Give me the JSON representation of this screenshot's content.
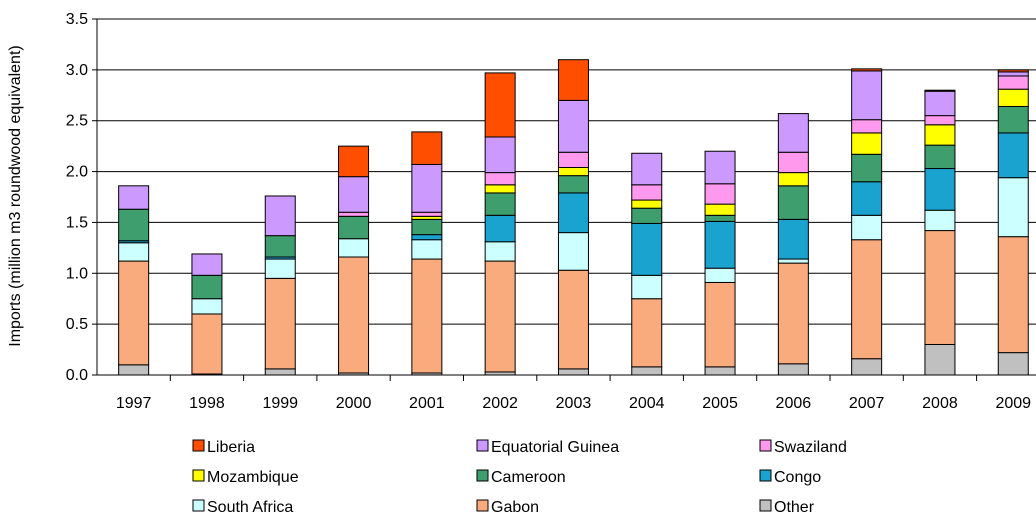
{
  "chart_data": {
    "type": "bar",
    "stacked": true,
    "title": "",
    "xlabel": "",
    "ylabel": "Imports (million m3 roundwood equivalent)",
    "ylim": [
      0,
      3.5
    ],
    "yticks": [
      "0.0",
      "0.5",
      "1.0",
      "1.5",
      "2.0",
      "2.5",
      "3.0",
      "3.5"
    ],
    "grid": true,
    "legend_position": "bottom",
    "categories": [
      "1997",
      "1998",
      "1999",
      "2000",
      "2001",
      "2002",
      "2003",
      "2004",
      "2005",
      "2006",
      "2007",
      "2008",
      "2009"
    ],
    "series": [
      {
        "name": "Other",
        "color": "#c0c0c0",
        "values": [
          0.1,
          0.01,
          0.06,
          0.02,
          0.02,
          0.03,
          0.06,
          0.08,
          0.08,
          0.11,
          0.16,
          0.3,
          0.22
        ]
      },
      {
        "name": "Gabon",
        "color": "#f9ab7d",
        "values": [
          1.02,
          0.59,
          0.89,
          1.14,
          1.12,
          1.09,
          0.97,
          0.67,
          0.83,
          0.99,
          1.17,
          1.12,
          1.14
        ]
      },
      {
        "name": "South Africa",
        "color": "#ccffff",
        "values": [
          0.18,
          0.15,
          0.19,
          0.18,
          0.19,
          0.19,
          0.37,
          0.23,
          0.14,
          0.04,
          0.24,
          0.2,
          0.58
        ]
      },
      {
        "name": "Congo",
        "color": "#1aa3cf",
        "values": [
          0.02,
          0.0,
          0.02,
          0.0,
          0.05,
          0.26,
          0.39,
          0.51,
          0.46,
          0.39,
          0.33,
          0.41,
          0.44
        ]
      },
      {
        "name": "Cameroon",
        "color": "#3f9e6e",
        "values": [
          0.31,
          0.23,
          0.21,
          0.22,
          0.15,
          0.22,
          0.17,
          0.15,
          0.06,
          0.33,
          0.27,
          0.23,
          0.26
        ]
      },
      {
        "name": "Mozambique",
        "color": "#ffff00",
        "values": [
          0.0,
          0.0,
          0.0,
          0.0,
          0.03,
          0.08,
          0.08,
          0.08,
          0.11,
          0.13,
          0.21,
          0.2,
          0.17
        ]
      },
      {
        "name": "Swaziland",
        "color": "#ff99ee",
        "values": [
          0.0,
          0.0,
          0.0,
          0.04,
          0.04,
          0.12,
          0.15,
          0.15,
          0.2,
          0.2,
          0.13,
          0.09,
          0.13
        ]
      },
      {
        "name": "Equatorial Guinea",
        "color": "#cc99ff",
        "values": [
          0.23,
          0.21,
          0.39,
          0.35,
          0.47,
          0.35,
          0.51,
          0.31,
          0.32,
          0.38,
          0.48,
          0.24,
          0.04
        ]
      },
      {
        "name": "Liberia",
        "color": "#ff4e00",
        "values": [
          0.0,
          0.0,
          0.0,
          0.3,
          0.32,
          0.63,
          0.4,
          0.0,
          0.0,
          0.0,
          0.02,
          0.01,
          0.02
        ]
      }
    ],
    "legend_order": [
      "Liberia",
      "Equatorial Guinea",
      "Swaziland",
      "Mozambique",
      "Cameroon",
      "Congo",
      "South Africa",
      "Gabon",
      "Other"
    ]
  }
}
